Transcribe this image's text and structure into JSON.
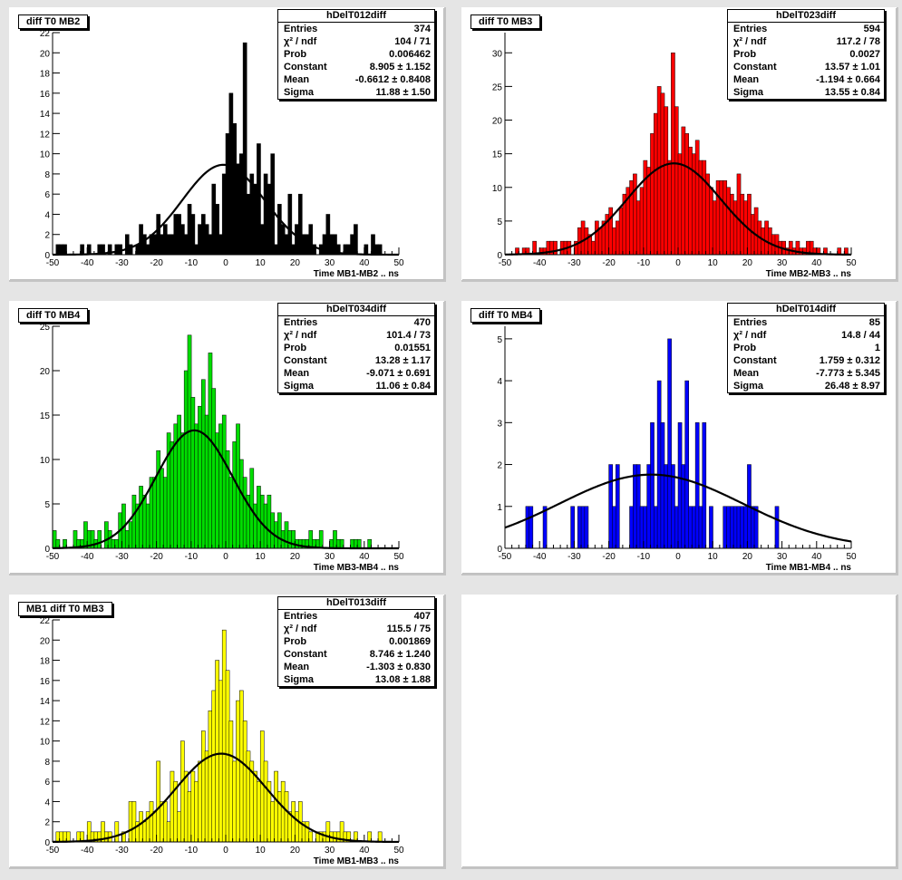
{
  "pads": [
    {
      "pad_title": "diff T0 MB2",
      "stats": {
        "name": "hDelT012diff",
        "rows": [
          {
            "label": "Entries",
            "value": "374"
          },
          {
            "label": "χ² / ndf",
            "value": "104 / 71"
          },
          {
            "label": "Prob",
            "value": "0.006462"
          },
          {
            "label": "Constant",
            "value": "8.905 ± 1.152"
          },
          {
            "label": "Mean",
            "value": "-0.6612 ± 0.8408"
          },
          {
            "label": "Sigma",
            "value": "11.88 ± 1.50"
          }
        ]
      }
    },
    {
      "pad_title": "diff T0 MB3",
      "stats": {
        "name": "hDelT023diff",
        "rows": [
          {
            "label": "Entries",
            "value": "594"
          },
          {
            "label": "χ² / ndf",
            "value": "117.2 / 78"
          },
          {
            "label": "Prob",
            "value": "0.0027"
          },
          {
            "label": "Constant",
            "value": "13.57 ± 1.01"
          },
          {
            "label": "Mean",
            "value": "-1.194 ± 0.664"
          },
          {
            "label": "Sigma",
            "value": "13.55 ± 0.84"
          }
        ]
      }
    },
    {
      "pad_title": "diff T0 MB4",
      "stats": {
        "name": "hDelT034diff",
        "rows": [
          {
            "label": "Entries",
            "value": "470"
          },
          {
            "label": "χ² / ndf",
            "value": "101.4 / 73"
          },
          {
            "label": "Prob",
            "value": "0.01551"
          },
          {
            "label": "Constant",
            "value": "13.28 ± 1.17"
          },
          {
            "label": "Mean",
            "value": "-9.071 ± 0.691"
          },
          {
            "label": "Sigma",
            "value": "11.06 ± 0.84"
          }
        ]
      }
    },
    {
      "pad_title": "diff T0 MB4",
      "stats": {
        "name": "hDelT014diff",
        "rows": [
          {
            "label": "Entries",
            "value": "85"
          },
          {
            "label": "χ² / ndf",
            "value": "14.8 / 44"
          },
          {
            "label": "Prob",
            "value": "1"
          },
          {
            "label": "Constant",
            "value": "1.759 ± 0.312"
          },
          {
            "label": "Mean",
            "value": "-7.773 ± 5.345"
          },
          {
            "label": "Sigma",
            "value": "26.48 ± 8.97"
          }
        ]
      }
    },
    {
      "pad_title": "MB1 diff T0 MB3",
      "stats": {
        "name": "hDelT013diff",
        "rows": [
          {
            "label": "Entries",
            "value": "407"
          },
          {
            "label": "χ² / ndf",
            "value": "115.5 / 75"
          },
          {
            "label": "Prob",
            "value": "0.001869"
          },
          {
            "label": "Constant",
            "value": "8.746 ± 1.240"
          },
          {
            "label": "Mean",
            "value": "-1.303 ± 0.830"
          },
          {
            "label": "Sigma",
            "value": "13.08 ± 1.88"
          }
        ]
      }
    }
  ],
  "chart_data": [
    {
      "type": "bar",
      "title": "diff T0 MB2",
      "xlabel": "Time MB1-MB2  ..  ns",
      "ylabel": "",
      "xlim": [
        -50,
        50
      ],
      "ylim": [
        0,
        22
      ],
      "xticks": [
        -50,
        -40,
        -30,
        -20,
        -10,
        0,
        10,
        20,
        30,
        40,
        50
      ],
      "yticks": [
        0,
        2,
        4,
        6,
        8,
        10,
        12,
        14,
        16,
        18,
        20,
        22
      ],
      "fill": "#000000",
      "fit": {
        "constant": 8.905,
        "mean": -0.6612,
        "sigma": 11.88
      },
      "bins": {
        "start": -50,
        "width": 1,
        "counts": [
          0,
          1,
          1,
          1,
          0,
          0,
          0,
          0,
          1,
          0,
          1,
          0,
          0,
          1,
          1,
          0,
          1,
          0,
          1,
          1,
          0,
          2,
          1,
          0,
          1,
          3,
          2,
          1,
          2,
          2,
          4,
          2,
          3,
          2,
          2,
          4,
          4,
          3,
          2,
          5,
          4,
          1,
          3,
          4,
          3,
          2,
          7,
          5,
          2,
          8,
          12,
          16,
          13,
          9,
          10,
          21,
          6,
          8,
          7,
          11,
          3,
          8,
          7,
          10,
          1,
          5,
          3,
          2,
          6,
          1,
          3,
          6,
          2,
          2,
          3,
          1,
          0,
          1,
          2,
          4,
          2,
          2,
          1,
          0,
          1,
          1,
          2,
          3,
          0,
          0,
          1,
          0,
          2,
          1,
          1,
          0,
          0,
          0,
          0,
          0
        ]
      }
    },
    {
      "type": "bar",
      "title": "diff T0 MB3",
      "xlabel": "Time MB2-MB3  ..  ns",
      "ylabel": "",
      "xlim": [
        -50,
        50
      ],
      "ylim": [
        0,
        33
      ],
      "xticks": [
        -50,
        -40,
        -30,
        -20,
        -10,
        0,
        10,
        20,
        30,
        40,
        50
      ],
      "yticks": [
        0,
        5,
        10,
        15,
        20,
        25,
        30
      ],
      "fill": "#ff0000",
      "fit": {
        "constant": 13.57,
        "mean": -1.194,
        "sigma": 13.55
      },
      "bins": {
        "start": -50,
        "width": 1,
        "counts": [
          0,
          0,
          0,
          1,
          0,
          1,
          1,
          0,
          2,
          0,
          1,
          1,
          2,
          2,
          2,
          0,
          2,
          2,
          2,
          0,
          2,
          4,
          5,
          4,
          3,
          2,
          5,
          4,
          5,
          6,
          7,
          4,
          5,
          7,
          9,
          10,
          11,
          12,
          8,
          10,
          14,
          13,
          18,
          21,
          25,
          24,
          22,
          14,
          30,
          22,
          15,
          19,
          18,
          16,
          15,
          17,
          14,
          14,
          12,
          10,
          8,
          11,
          11,
          11,
          10,
          9,
          8,
          12,
          9,
          8,
          9,
          6,
          7,
          5,
          4,
          5,
          4,
          3,
          3,
          2,
          2,
          1,
          2,
          1,
          2,
          1,
          1,
          2,
          2,
          1,
          1,
          0,
          1,
          0,
          0,
          0,
          1,
          0,
          1,
          0
        ]
      }
    },
    {
      "type": "bar",
      "title": "diff T0 MB4",
      "xlabel": "Time MB3-MB4  ..  ns",
      "ylabel": "",
      "xlim": [
        -50,
        50
      ],
      "ylim": [
        0,
        25
      ],
      "xticks": [
        -50,
        -40,
        -30,
        -20,
        -10,
        0,
        10,
        20,
        30,
        40,
        50
      ],
      "yticks": [
        0,
        5,
        10,
        15,
        20,
        25
      ],
      "fill": "#00dd00",
      "fit": {
        "constant": 13.28,
        "mean": -9.071,
        "sigma": 11.06
      },
      "bins": {
        "start": -50,
        "width": 1,
        "counts": [
          2,
          1,
          0,
          1,
          0,
          0,
          2,
          1,
          1,
          3,
          2,
          2,
          1,
          2,
          0,
          3,
          2,
          1,
          1,
          4,
          5,
          2,
          3,
          6,
          5,
          7,
          6,
          5,
          8,
          8,
          11,
          9,
          8,
          13,
          12,
          14,
          15,
          13,
          20,
          24,
          17,
          14,
          16,
          19,
          15,
          22,
          18,
          13,
          14,
          15,
          11,
          8,
          12,
          14,
          10,
          8,
          6,
          9,
          5,
          7,
          6,
          5,
          6,
          4,
          3,
          4,
          2,
          3,
          2,
          2,
          1,
          1,
          1,
          1,
          2,
          1,
          1,
          2,
          0,
          0,
          1,
          2,
          1,
          1,
          0,
          0,
          1,
          1,
          1,
          0,
          0,
          1,
          0,
          0,
          0,
          0,
          0,
          0,
          0,
          0
        ]
      }
    },
    {
      "type": "bar",
      "title": "diff T0 MB4",
      "xlabel": "Time MB1-MB4  ..  ns",
      "ylabel": "",
      "xlim": [
        -50,
        50
      ],
      "ylim": [
        0,
        5.3
      ],
      "xticks": [
        -50,
        -40,
        -30,
        -20,
        -10,
        0,
        10,
        20,
        30,
        40,
        50
      ],
      "yticks": [
        0,
        1,
        2,
        3,
        4,
        5
      ],
      "fill": "#0000ff",
      "fit": {
        "constant": 1.759,
        "mean": -7.773,
        "sigma": 26.48
      },
      "bins": {
        "start": -50,
        "width": 1,
        "counts": [
          0,
          0,
          0,
          0,
          0,
          0,
          1,
          1,
          0,
          0,
          0,
          1,
          0,
          0,
          0,
          0,
          0,
          0,
          0,
          1,
          0,
          1,
          1,
          1,
          0,
          0,
          0,
          0,
          0,
          0,
          2,
          1,
          2,
          0,
          0,
          0,
          1,
          2,
          2,
          1,
          1,
          2,
          3,
          1,
          4,
          3,
          2,
          5,
          2,
          1,
          3,
          2,
          4,
          1,
          1,
          3,
          1,
          3,
          0,
          1,
          0,
          0,
          0,
          1,
          1,
          1,
          1,
          1,
          1,
          1,
          2,
          1,
          1,
          0,
          0,
          0,
          0,
          0,
          1,
          0,
          0,
          0,
          0,
          0,
          0,
          0,
          0,
          0,
          0,
          0,
          0,
          0,
          0,
          0,
          0,
          0,
          0,
          0,
          0,
          0
        ]
      }
    },
    {
      "type": "bar",
      "title": "MB1 diff T0 MB3",
      "xlabel": "Time MB1-MB3  ..  ns",
      "ylabel": "",
      "xlim": [
        -50,
        50
      ],
      "ylim": [
        0,
        22
      ],
      "xticks": [
        -50,
        -40,
        -30,
        -20,
        -10,
        0,
        10,
        20,
        30,
        40,
        50
      ],
      "yticks": [
        0,
        2,
        4,
        6,
        8,
        10,
        12,
        14,
        16,
        18,
        20,
        22
      ],
      "fill": "#ffff00",
      "fit": {
        "constant": 8.746,
        "mean": -1.303,
        "sigma": 13.08
      },
      "bins": {
        "start": -50,
        "width": 1,
        "counts": [
          0,
          1,
          1,
          1,
          1,
          0,
          0,
          1,
          1,
          0,
          2,
          1,
          1,
          1,
          2,
          1,
          1,
          0,
          2,
          0,
          1,
          0,
          4,
          4,
          2,
          3,
          2,
          3,
          4,
          3,
          8,
          4,
          4,
          2,
          7,
          6,
          3,
          10,
          7,
          5,
          7,
          6,
          8,
          11,
          9,
          13,
          15,
          18,
          16,
          21,
          17,
          12,
          8,
          14,
          15,
          12,
          9,
          8,
          7,
          6,
          11,
          8,
          6,
          4,
          7,
          5,
          6,
          5,
          3,
          4,
          3,
          4,
          2,
          2,
          1,
          0,
          1,
          1,
          1,
          2,
          1,
          1,
          1,
          2,
          1,
          1,
          0,
          1,
          0,
          0,
          0,
          1,
          0,
          0,
          1,
          0,
          0,
          0,
          0,
          0
        ]
      }
    }
  ]
}
